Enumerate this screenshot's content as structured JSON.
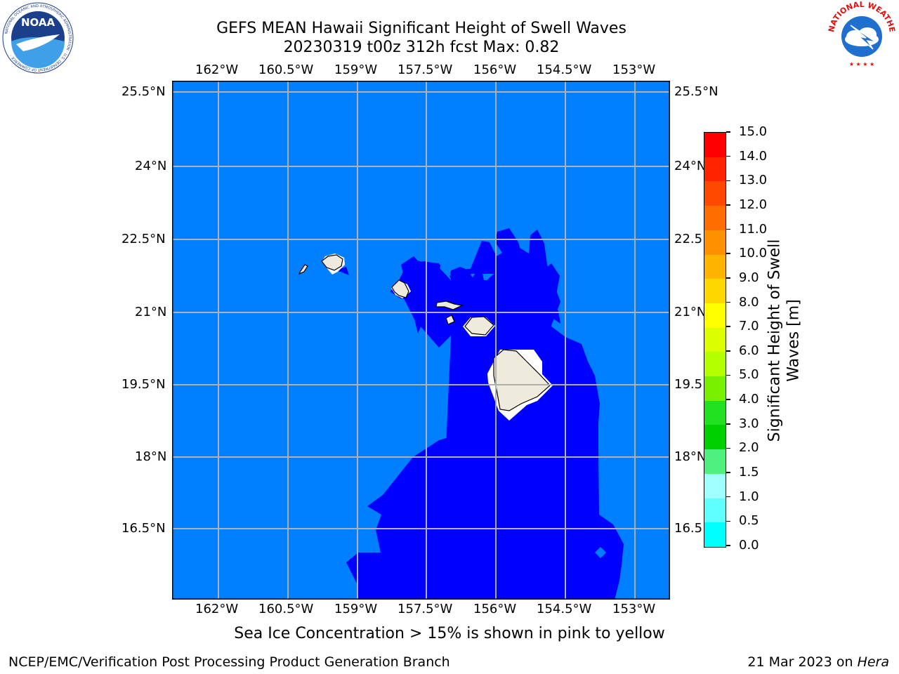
{
  "header": {
    "title_line1": "GEFS MEAN Hawaii Significant Height of Swell Waves",
    "title_line2": "20230319 t00z 312h fcst   Max: 0.82"
  },
  "logos": {
    "left": {
      "name": "NOAA",
      "text": "NOAA",
      "ring_text": "NATIONAL OCEANIC AND ATMOSPHERIC ADMINISTRATION · U.S. DEPARTMENT OF COMMERCE"
    },
    "right": {
      "name": "National Weather Service",
      "ring_text": "NATIONAL WEATHER SERVICE"
    }
  },
  "map": {
    "lon_labels": [
      "162°W",
      "160.5°W",
      "159°W",
      "157.5°W",
      "156°W",
      "154.5°W",
      "153°W"
    ],
    "lat_labels": [
      "25.5°N",
      "24°N",
      "22.5°N",
      "21°N",
      "19.5°N",
      "18°N",
      "16.5°N"
    ],
    "right_lat_labels": [
      "25.5°N",
      "24°N",
      "22.5",
      "21°N",
      "19.5",
      "18°N",
      "16.5"
    ],
    "colors": {
      "ocean_low": "#0000ff",
      "ocean_mid": "#0080ff",
      "land": "#efebdc",
      "grid": "#b0b0b0"
    }
  },
  "colorbar": {
    "label": "Significant Height of Swell Waves [m]",
    "label_line1": "Significant Height of Swell",
    "label_line2": "Waves [m]",
    "ticks": [
      "15.0",
      "14.0",
      "13.0",
      "12.0",
      "11.0",
      "10.0",
      "9.0",
      "8.0",
      "7.0",
      "6.0",
      "5.0",
      "4.0",
      "3.0",
      "2.0",
      "1.5",
      "1.0",
      "0.5",
      "0.0"
    ],
    "colors_top_to_bottom": [
      "#ff0000",
      "#ff2400",
      "#ff4800",
      "#ff6c00",
      "#ff9000",
      "#ffb400",
      "#ffd800",
      "#ffff00",
      "#dcff00",
      "#b4ff00",
      "#78f000",
      "#20e020",
      "#00d000",
      "#50f080",
      "#a0ffff",
      "#60ffff",
      "#00ffff",
      "#0080ff",
      "#0000ff"
    ]
  },
  "notes": {
    "sea_ice": "Sea Ice Concentration > 15% is shown in pink to yellow"
  },
  "footer": {
    "left": "NCEP/EMC/Verification Post Processing Product Generation Branch",
    "right_date": "21 Mar 2023 on ",
    "right_host": "Hera"
  }
}
